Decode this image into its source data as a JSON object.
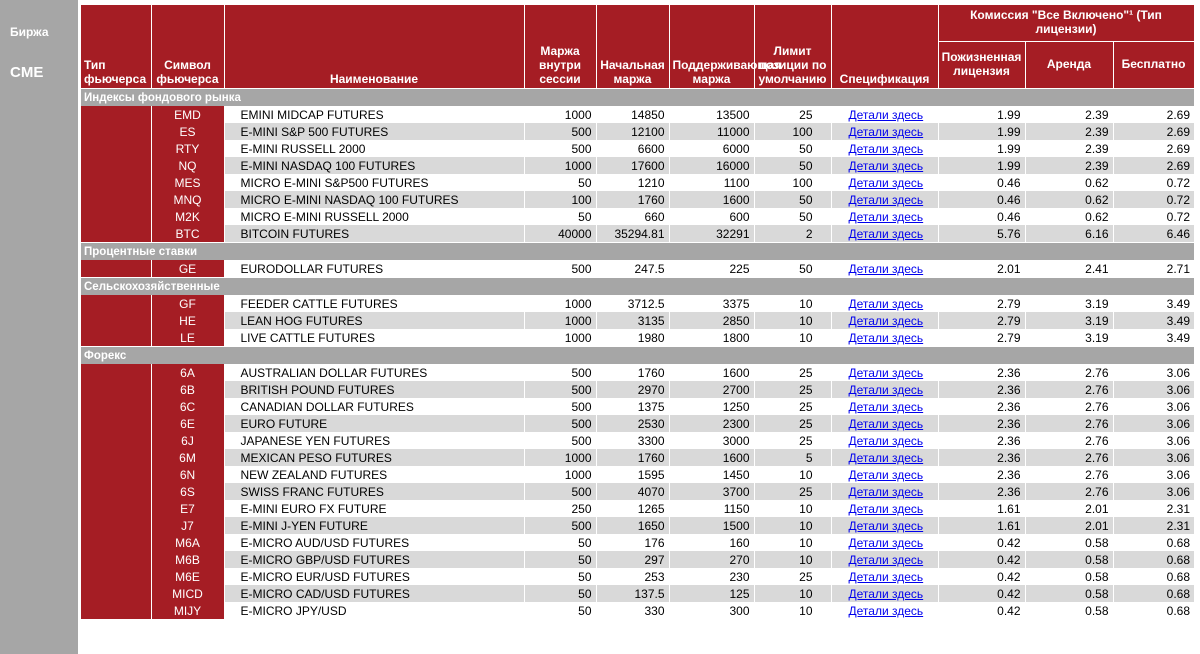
{
  "exchange": {
    "label": "Биржа",
    "value": "CME"
  },
  "headers": {
    "futures_type": "Тип фьючерса",
    "symbol": "Символ фьючерса",
    "name": "Наименование",
    "intraday_margin": "Маржа внутри сессии",
    "initial_margin": "Начальная маржа",
    "maintenance_margin": "Поддерживающая маржа",
    "position_limit": "Лимит позиции по умолчанию",
    "specification": "Спецификация",
    "commission_title": "Комиссия \"Все Включено\"¹ (Тип лицензии)",
    "lifetime": "Пожизненная лицензия",
    "rent": "Аренда",
    "free": "Бесплатно"
  },
  "link_text": "Детали здесь",
  "colors": {
    "header_red": "#a51d24",
    "section_gray": "#a6a6a6",
    "row_shade": "#d9d9d9",
    "link": "#0000ee"
  },
  "sections": [
    {
      "title": "Индексы фондового рынка",
      "rows": [
        {
          "symbol": "EMD",
          "name": "EMINI MIDCAP FUTURES",
          "intraday": "1000",
          "initial": "14850",
          "maintenance": "13500",
          "limit": "25",
          "lifetime": "1.99",
          "rent": "2.39",
          "free": "2.69"
        },
        {
          "symbol": "ES",
          "name": "E-MINI S&P 500 FUTURES",
          "intraday": "500",
          "initial": "12100",
          "maintenance": "11000",
          "limit": "100",
          "lifetime": "1.99",
          "rent": "2.39",
          "free": "2.69"
        },
        {
          "symbol": "RTY",
          "name": "E-MINI RUSSELL 2000",
          "intraday": "500",
          "initial": "6600",
          "maintenance": "6000",
          "limit": "50",
          "lifetime": "1.99",
          "rent": "2.39",
          "free": "2.69"
        },
        {
          "symbol": "NQ",
          "name": "E-MINI NASDAQ 100 FUTURES",
          "intraday": "1000",
          "initial": "17600",
          "maintenance": "16000",
          "limit": "50",
          "lifetime": "1.99",
          "rent": "2.39",
          "free": "2.69"
        },
        {
          "symbol": "MES",
          "name": "MICRO E-MINI S&P500 FUTURES",
          "intraday": "50",
          "initial": "1210",
          "maintenance": "1100",
          "limit": "100",
          "lifetime": "0.46",
          "rent": "0.62",
          "free": "0.72"
        },
        {
          "symbol": "MNQ",
          "name": "MICRO E-MINI NASDAQ 100 FUTURES",
          "intraday": "100",
          "initial": "1760",
          "maintenance": "1600",
          "limit": "50",
          "lifetime": "0.46",
          "rent": "0.62",
          "free": "0.72"
        },
        {
          "symbol": "M2K",
          "name": "MICRO E-MINI RUSSELL 2000",
          "intraday": "50",
          "initial": "660",
          "maintenance": "600",
          "limit": "50",
          "lifetime": "0.46",
          "rent": "0.62",
          "free": "0.72"
        },
        {
          "symbol": "BTC",
          "name": "BITCOIN FUTURES",
          "intraday": "40000",
          "initial": "35294.81",
          "maintenance": "32291",
          "limit": "2",
          "lifetime": "5.76",
          "rent": "6.16",
          "free": "6.46"
        }
      ]
    },
    {
      "title": "Процентные ставки",
      "rows": [
        {
          "symbol": "GE",
          "name": "EURODOLLAR FUTURES",
          "intraday": "500",
          "initial": "247.5",
          "maintenance": "225",
          "limit": "50",
          "lifetime": "2.01",
          "rent": "2.41",
          "free": "2.71"
        }
      ]
    },
    {
      "title": "Сельскохозяйственные",
      "rows": [
        {
          "symbol": "GF",
          "name": "FEEDER CATTLE FUTURES",
          "intraday": "1000",
          "initial": "3712.5",
          "maintenance": "3375",
          "limit": "10",
          "lifetime": "2.79",
          "rent": "3.19",
          "free": "3.49"
        },
        {
          "symbol": "HE",
          "name": "LEAN HOG FUTURES",
          "intraday": "1000",
          "initial": "3135",
          "maintenance": "2850",
          "limit": "10",
          "lifetime": "2.79",
          "rent": "3.19",
          "free": "3.49"
        },
        {
          "symbol": "LE",
          "name": "LIVE CATTLE FUTURES",
          "intraday": "1000",
          "initial": "1980",
          "maintenance": "1800",
          "limit": "10",
          "lifetime": "2.79",
          "rent": "3.19",
          "free": "3.49"
        }
      ]
    },
    {
      "title": "Форекс",
      "rows": [
        {
          "symbol": "6A",
          "name": "AUSTRALIAN DOLLAR FUTURES",
          "intraday": "500",
          "initial": "1760",
          "maintenance": "1600",
          "limit": "25",
          "lifetime": "2.36",
          "rent": "2.76",
          "free": "3.06"
        },
        {
          "symbol": "6B",
          "name": "BRITISH POUND FUTURES",
          "intraday": "500",
          "initial": "2970",
          "maintenance": "2700",
          "limit": "25",
          "lifetime": "2.36",
          "rent": "2.76",
          "free": "3.06"
        },
        {
          "symbol": "6C",
          "name": "CANADIAN DOLLAR FUTURES",
          "intraday": "500",
          "initial": "1375",
          "maintenance": "1250",
          "limit": "25",
          "lifetime": "2.36",
          "rent": "2.76",
          "free": "3.06"
        },
        {
          "symbol": "6E",
          "name": "EURO FUTURE",
          "intraday": "500",
          "initial": "2530",
          "maintenance": "2300",
          "limit": "25",
          "lifetime": "2.36",
          "rent": "2.76",
          "free": "3.06"
        },
        {
          "symbol": "6J",
          "name": "JAPANESE YEN FUTURES",
          "intraday": "500",
          "initial": "3300",
          "maintenance": "3000",
          "limit": "25",
          "lifetime": "2.36",
          "rent": "2.76",
          "free": "3.06"
        },
        {
          "symbol": "6M",
          "name": "MEXICAN PESO FUTURES",
          "intraday": "1000",
          "initial": "1760",
          "maintenance": "1600",
          "limit": "5",
          "lifetime": "2.36",
          "rent": "2.76",
          "free": "3.06"
        },
        {
          "symbol": "6N",
          "name": "NEW ZEALAND FUTURES",
          "intraday": "1000",
          "initial": "1595",
          "maintenance": "1450",
          "limit": "10",
          "lifetime": "2.36",
          "rent": "2.76",
          "free": "3.06"
        },
        {
          "symbol": "6S",
          "name": "SWISS FRANC FUTURES",
          "intraday": "500",
          "initial": "4070",
          "maintenance": "3700",
          "limit": "25",
          "lifetime": "2.36",
          "rent": "2.76",
          "free": "3.06"
        },
        {
          "symbol": "E7",
          "name": "E-MINI EURO FX FUTURE",
          "intraday": "250",
          "initial": "1265",
          "maintenance": "1150",
          "limit": "10",
          "lifetime": "1.61",
          "rent": "2.01",
          "free": "2.31"
        },
        {
          "symbol": "J7",
          "name": "E-MINI J-YEN FUTURE",
          "intraday": "500",
          "initial": "1650",
          "maintenance": "1500",
          "limit": "10",
          "lifetime": "1.61",
          "rent": "2.01",
          "free": "2.31"
        },
        {
          "symbol": "M6A",
          "name": "E-MICRO AUD/USD FUTURES",
          "intraday": "50",
          "initial": "176",
          "maintenance": "160",
          "limit": "10",
          "lifetime": "0.42",
          "rent": "0.58",
          "free": "0.68"
        },
        {
          "symbol": "M6B",
          "name": "E-MICRO GBP/USD FUTURES",
          "intraday": "50",
          "initial": "297",
          "maintenance": "270",
          "limit": "10",
          "lifetime": "0.42",
          "rent": "0.58",
          "free": "0.68"
        },
        {
          "symbol": "M6E",
          "name": "E-MICRO EUR/USD FUTURES",
          "intraday": "50",
          "initial": "253",
          "maintenance": "230",
          "limit": "25",
          "lifetime": "0.42",
          "rent": "0.58",
          "free": "0.68"
        },
        {
          "symbol": "MICD",
          "name": "E-MICRO CAD/USD FUTURES",
          "intraday": "50",
          "initial": "137.5",
          "maintenance": "125",
          "limit": "10",
          "lifetime": "0.42",
          "rent": "0.58",
          "free": "0.68"
        },
        {
          "symbol": "MIJY",
          "name": "E-MICRO JPY/USD",
          "intraday": "50",
          "initial": "330",
          "maintenance": "300",
          "limit": "10",
          "lifetime": "0.42",
          "rent": "0.58",
          "free": "0.68"
        }
      ]
    }
  ]
}
